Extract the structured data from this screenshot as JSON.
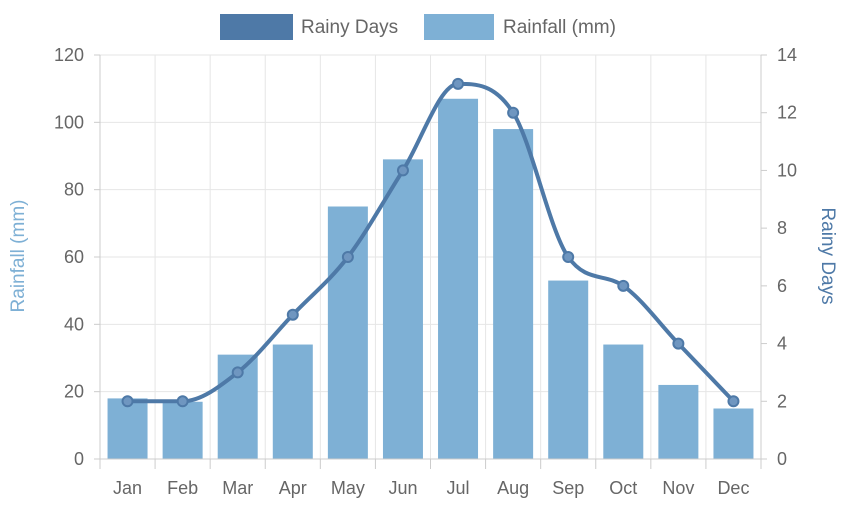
{
  "chart_data": {
    "type": "bar",
    "categories": [
      "Jan",
      "Feb",
      "Mar",
      "Apr",
      "May",
      "Jun",
      "Jul",
      "Aug",
      "Sep",
      "Oct",
      "Nov",
      "Dec"
    ],
    "series": [
      {
        "name": "Rainfall (mm)",
        "type": "bar",
        "axis": "left",
        "values": [
          18,
          17,
          31,
          34,
          75,
          89,
          107,
          98,
          53,
          34,
          22,
          15
        ]
      },
      {
        "name": "Rainy Days",
        "type": "line",
        "axis": "right",
        "smooth": true,
        "values": [
          2,
          2,
          3,
          5,
          7,
          10,
          13,
          12,
          7,
          6,
          4,
          2
        ]
      }
    ],
    "ylabel": "Rainfall (mm)",
    "y2label": "Rainy Days",
    "ylim": [
      0,
      120
    ],
    "y2lim": [
      0,
      14
    ],
    "yticks": [
      "0",
      "20",
      "40",
      "60",
      "80",
      "100",
      "120"
    ],
    "y2ticks": [
      "0",
      "2",
      "4",
      "6",
      "8",
      "10",
      "12",
      "14"
    ],
    "legend": [
      "Rainy Days",
      "Rainfall (mm)"
    ],
    "legend_position": "top",
    "grid": true,
    "colors": {
      "bar": "#7eb0d5",
      "line": "#4e79a7",
      "left_axis_title": "#7eb0d5",
      "right_axis_title": "#4e79a7"
    }
  }
}
